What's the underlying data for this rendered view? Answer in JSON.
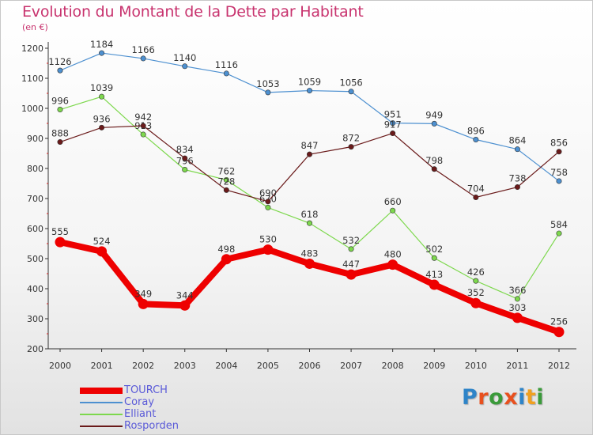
{
  "title": "Evolution du Montant de la Dette par Habitant",
  "subtitle": "(en €)",
  "logo": {
    "letters": [
      "P",
      "r",
      "o",
      "x",
      "i",
      "t",
      "i"
    ],
    "colors": [
      "#2e84c8",
      "#e8501e",
      "#3a9a3a",
      "#e8501e",
      "#2e84c8",
      "#f0a020",
      "#3a9a3a"
    ]
  },
  "chart_data": {
    "type": "line",
    "x": [
      "2000",
      "2001",
      "2002",
      "2003",
      "2004",
      "2005",
      "2006",
      "2007",
      "2008",
      "2009",
      "2010",
      "2011",
      "2012"
    ],
    "ylim": [
      200,
      1200
    ],
    "yticks": [
      200,
      300,
      400,
      500,
      600,
      700,
      800,
      900,
      1000,
      1100,
      1200
    ],
    "grid": false,
    "legend_position": "bottom-left",
    "series": [
      {
        "name": "TOURCH",
        "color": "#ee0000",
        "highlight": true,
        "values": [
          555,
          524,
          349,
          344,
          498,
          530,
          483,
          447,
          480,
          413,
          352,
          303,
          256
        ],
        "labels": [
          "555",
          "524",
          "349",
          "344",
          "498",
          "530",
          "483",
          "447",
          "480",
          "413",
          "352",
          "303",
          "256"
        ]
      },
      {
        "name": "Coray",
        "color": "#4d90d0",
        "values": [
          1126,
          1184,
          1166,
          1140,
          1116,
          1053,
          1059,
          1056,
          951,
          949,
          896,
          864,
          758
        ],
        "labels": [
          "1126",
          "1184",
          "1166",
          "1140",
          "1116",
          "1053",
          "1059",
          "1056",
          "951",
          "949",
          "896",
          "864",
          "758"
        ]
      },
      {
        "name": "Elliant",
        "color": "#7dd84d",
        "values": [
          996,
          1039,
          913,
          796,
          762,
          670,
          618,
          532,
          660,
          502,
          426,
          366,
          584
        ],
        "labels": [
          "996",
          "1039",
          "913",
          "796",
          "762",
          "670",
          "618",
          "532",
          "660",
          "502",
          "426",
          "366",
          "584"
        ]
      },
      {
        "name": "Rosporden",
        "color": "#6a1a1a",
        "values": [
          888,
          936,
          942,
          834,
          728,
          690,
          847,
          872,
          917,
          798,
          704,
          738,
          856
        ],
        "labels": [
          "888",
          "936",
          "942",
          "834",
          "728",
          "690",
          "847",
          "872",
          "917",
          "798",
          "704",
          "738",
          "856"
        ]
      }
    ]
  }
}
